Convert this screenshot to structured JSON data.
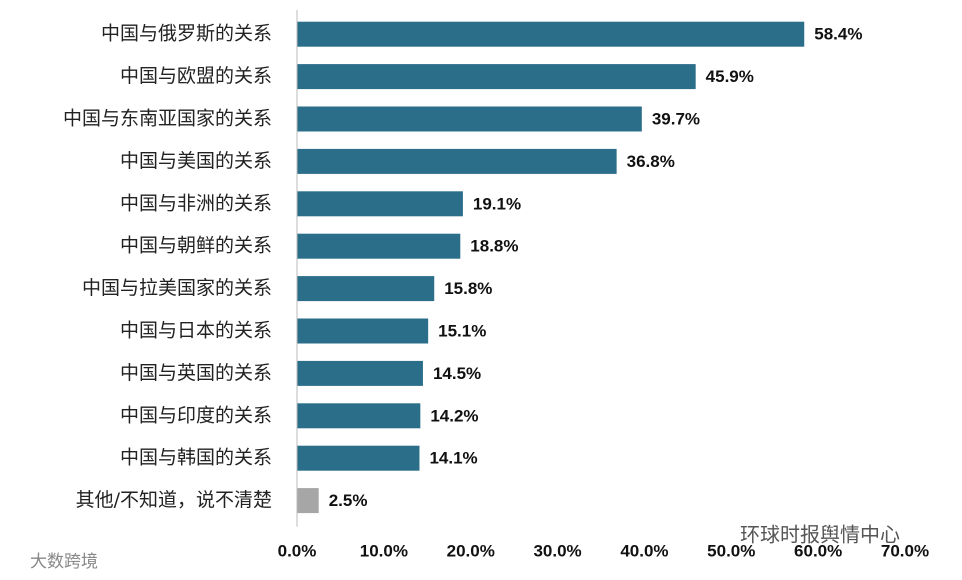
{
  "chart_data": {
    "type": "barh",
    "categories": [
      "中国与俄罗斯的关系",
      "中国与欧盟的关系",
      "中国与东南亚国家的关系",
      "中国与美国的关系",
      "中国与非洲的关系",
      "中国与朝鲜的关系",
      "中国与拉美国家的关系",
      "中国与日本的关系",
      "中国与英国的关系",
      "中国与印度的关系",
      "中国与韩国的关系",
      "其他/不知道，说不清楚"
    ],
    "values": [
      58.4,
      45.9,
      39.7,
      36.8,
      19.1,
      18.8,
      15.8,
      15.1,
      14.5,
      14.2,
      14.1,
      2.5
    ],
    "value_labels": [
      "58.4%",
      "45.9%",
      "39.7%",
      "36.8%",
      "19.1%",
      "18.8%",
      "15.8%",
      "15.1%",
      "14.5%",
      "14.2%",
      "14.1%",
      "2.5%"
    ],
    "colors": [
      "#2b6e8a",
      "#2b6e8a",
      "#2b6e8a",
      "#2b6e8a",
      "#2b6e8a",
      "#2b6e8a",
      "#2b6e8a",
      "#2b6e8a",
      "#2b6e8a",
      "#2b6e8a",
      "#2b6e8a",
      "#a6a6a6"
    ],
    "xlim": [
      0,
      70
    ],
    "xticks": [
      {
        "value": 0,
        "label": "0.0%"
      },
      {
        "value": 10,
        "label": "10.0%"
      },
      {
        "value": 20,
        "label": "20.0%"
      },
      {
        "value": 30,
        "label": "30.0%"
      },
      {
        "value": 40,
        "label": "40.0%"
      },
      {
        "value": 50,
        "label": "50.0%"
      },
      {
        "value": 60,
        "label": "60.0%"
      },
      {
        "value": 70,
        "label": "70.0%"
      }
    ],
    "source": "环球时报舆情中心",
    "watermark": "大数跨境"
  }
}
